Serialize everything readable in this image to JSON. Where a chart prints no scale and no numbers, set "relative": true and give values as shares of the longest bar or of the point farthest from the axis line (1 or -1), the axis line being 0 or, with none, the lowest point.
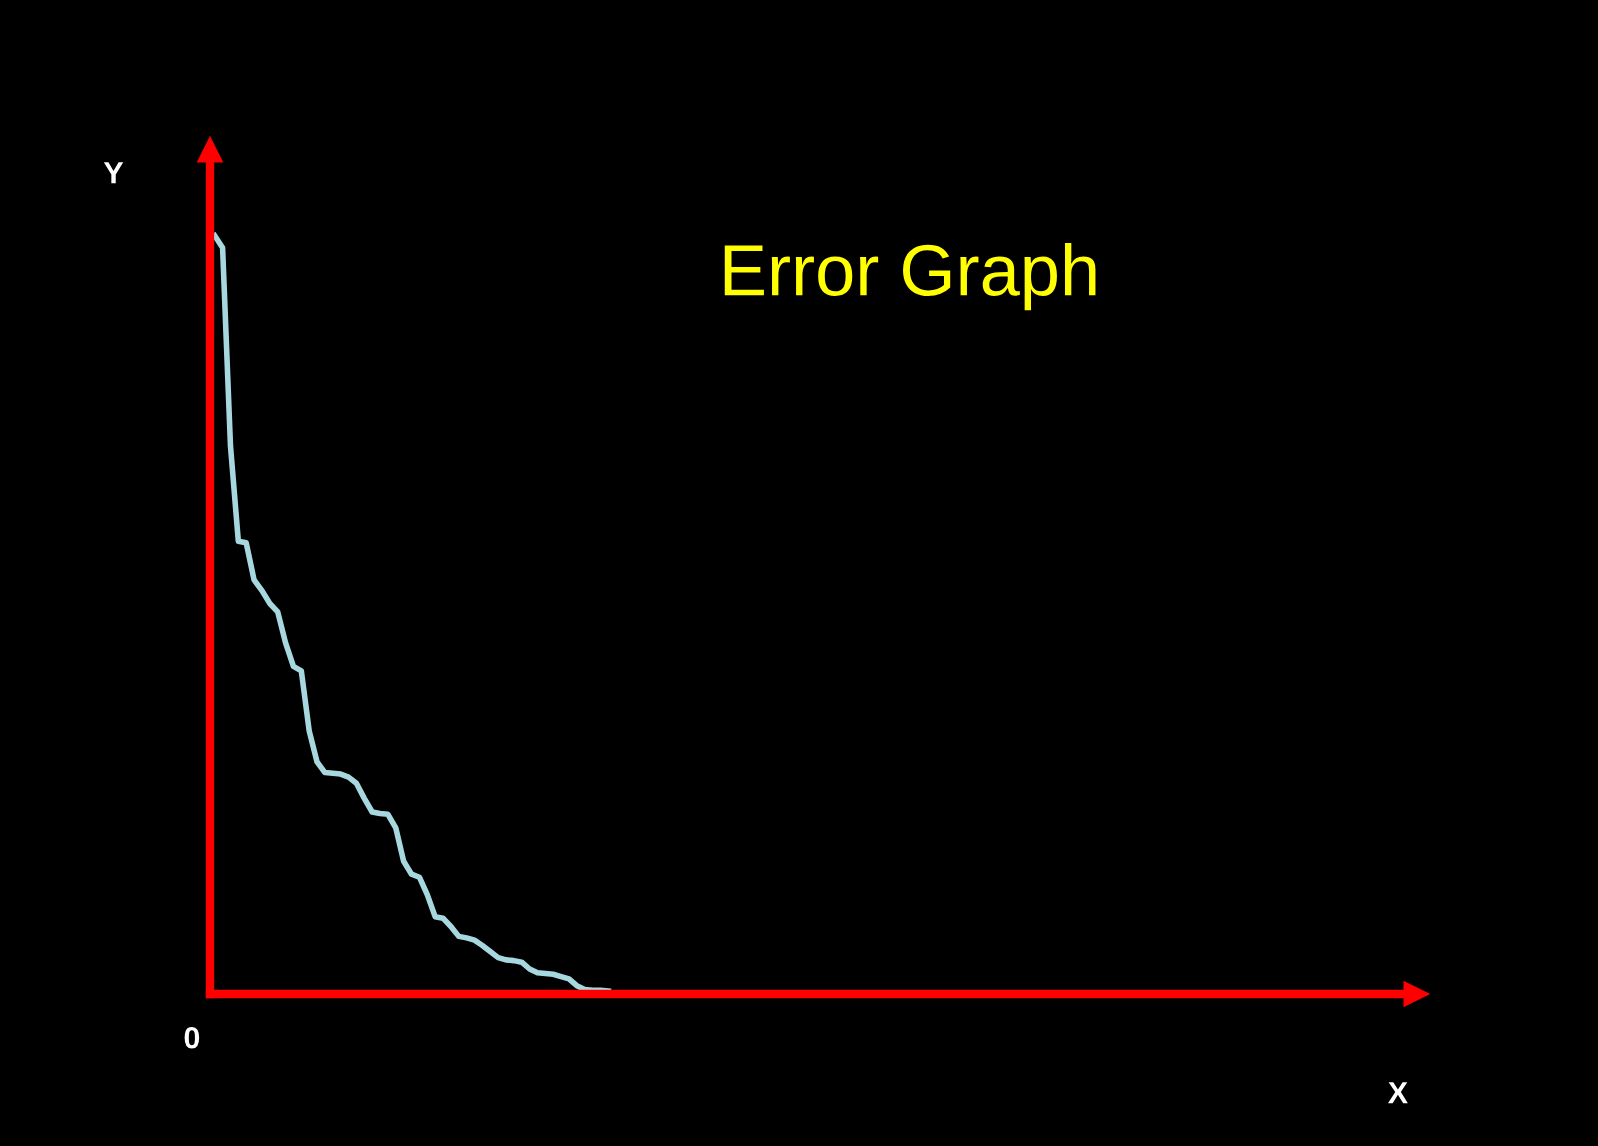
{
  "chart_data": {
    "type": "line",
    "title": "Error Graph",
    "ylabel": "Y",
    "relative": true,
    "annotations": [
      "0",
      "X"
    ],
    "legend": false,
    "marker": "none",
    "line_style": "solid",
    "categories": [
      null,
      null,
      null,
      null,
      null,
      null,
      null,
      null,
      null,
      null,
      null,
      null,
      null,
      null,
      null,
      null,
      null,
      null,
      null,
      null,
      null,
      null,
      null,
      null,
      null,
      null,
      null,
      null,
      null,
      null,
      null,
      null,
      null,
      null,
      null,
      null,
      null,
      null,
      null,
      null,
      null,
      null,
      null,
      null,
      null,
      null,
      null,
      null,
      null,
      null,
      null
    ],
    "series": [
      {
        "color": "#a8d8df",
        "values": [
          1.0,
          0.984,
          0.723,
          0.597,
          0.595,
          0.546,
          0.532,
          0.515,
          0.504,
          0.463,
          0.432,
          0.426,
          0.347,
          0.306,
          0.292,
          0.291,
          0.29,
          0.286,
          0.278,
          0.258,
          0.24,
          0.238,
          0.237,
          0.219,
          0.175,
          0.158,
          0.154,
          0.131,
          0.102,
          0.1,
          0.089,
          0.076,
          0.074,
          0.071,
          0.064,
          0.056,
          0.048,
          0.045,
          0.044,
          0.042,
          0.033,
          0.028,
          0.027,
          0.026,
          0.023,
          0.02,
          0.011,
          0.006,
          0.005,
          0.005,
          0.004
        ]
      }
    ]
  }
}
